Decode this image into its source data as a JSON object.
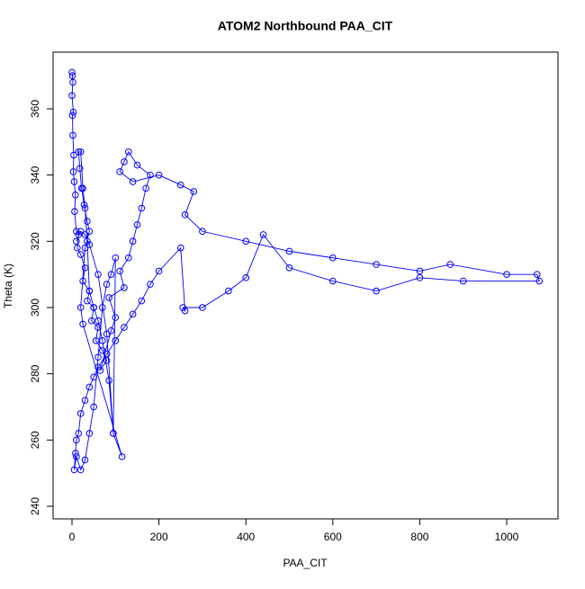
{
  "chart_data": {
    "type": "line",
    "title": "ATOM2 Northbound PAA_CIT",
    "x_label": "PAA_CIT",
    "y_label": "Theta (K)",
    "color": "#0000ff",
    "markers": true,
    "x": [
      0,
      1,
      2,
      0,
      3,
      1,
      2,
      4,
      3,
      5,
      8,
      6,
      10,
      15,
      12,
      20,
      30,
      25,
      40,
      35,
      50,
      45,
      60,
      55,
      70,
      80,
      65,
      90,
      100,
      85,
      120,
      110,
      130,
      140,
      150,
      160,
      170,
      180,
      150,
      130,
      120,
      110,
      140,
      200,
      250,
      280,
      260,
      300,
      400,
      500,
      600,
      700,
      800,
      870,
      1000,
      1070,
      1075,
      900,
      800,
      700,
      600,
      500,
      440,
      400,
      360,
      300,
      255,
      260,
      250,
      200,
      180,
      160,
      140,
      120,
      100,
      80,
      60,
      50,
      40,
      30,
      20,
      15,
      10,
      8,
      5,
      10,
      20,
      30,
      40,
      50,
      60,
      70,
      80,
      90,
      100,
      95,
      85,
      70,
      60,
      50,
      40,
      35,
      30,
      25,
      20,
      15,
      18,
      22,
      28,
      35,
      40,
      30,
      20,
      25,
      115,
      95,
      80,
      60,
      40,
      30,
      20,
      10
    ],
    "y": [
      371,
      370,
      368,
      364,
      359,
      358,
      352,
      346,
      341,
      338,
      334,
      329,
      323,
      322,
      318,
      316,
      312,
      308,
      305,
      302,
      300,
      296,
      294,
      290,
      287,
      284,
      281,
      293,
      297,
      303,
      306,
      311,
      315,
      320,
      325,
      330,
      336,
      340,
      343,
      347,
      344,
      341,
      338,
      340,
      337,
      335,
      328,
      323,
      320,
      317,
      315,
      313,
      311,
      313,
      310,
      310,
      308,
      308,
      309,
      305,
      308,
      312,
      322,
      309,
      305,
      300,
      300,
      299,
      318,
      311,
      307,
      302,
      298,
      294,
      290,
      286,
      282,
      279,
      276,
      272,
      268,
      262,
      260,
      256,
      251,
      255,
      251,
      254,
      262,
      270,
      285,
      300,
      307,
      310,
      315,
      262,
      278,
      290,
      296,
      300,
      305,
      320,
      330,
      336,
      347,
      347,
      342,
      336,
      331,
      326,
      323,
      318,
      300,
      295,
      255,
      262,
      292,
      310,
      319,
      322,
      323,
      320
    ],
    "xlim": [
      -43.5,
      1118
    ],
    "ylim": [
      236.2,
      377.1
    ],
    "xticks": [
      0,
      200,
      400,
      600,
      800,
      1000
    ],
    "yticks": [
      240,
      260,
      280,
      300,
      320,
      340,
      360
    ]
  }
}
